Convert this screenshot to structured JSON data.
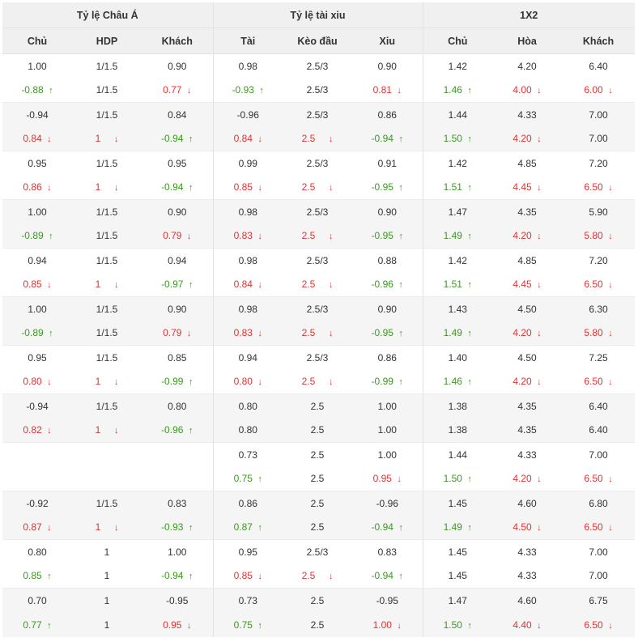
{
  "headers": {
    "groups": [
      "Tỷ lệ Châu Á",
      "Tỷ lệ tài xiu",
      "1X2"
    ],
    "columns": [
      "Chủ",
      "HDP",
      "Khách",
      "Tài",
      "Kèo đầu",
      "Xiu",
      "Chủ",
      "Hòa",
      "Khách"
    ]
  },
  "colors": {
    "up": "#3a9a1e",
    "down": "#e03232",
    "header_bg": "#f0f0f0",
    "row_shaded": "#f5f5f5"
  },
  "blocks": [
    [
      [
        [
          "1.00",
          ""
        ],
        [
          "1/1.5",
          ""
        ],
        [
          "0.90",
          ""
        ],
        [
          "0.98",
          ""
        ],
        [
          "2.5/3",
          ""
        ],
        [
          "0.90",
          ""
        ],
        [
          "1.42",
          ""
        ],
        [
          "4.20",
          ""
        ],
        [
          "6.40",
          ""
        ]
      ],
      [
        [
          "-0.88",
          "up"
        ],
        [
          "1/1.5",
          ""
        ],
        [
          "0.77",
          "down"
        ],
        [
          "-0.93",
          "up"
        ],
        [
          "2.5/3",
          ""
        ],
        [
          "0.81",
          "down"
        ],
        [
          "1.46",
          "up"
        ],
        [
          "4.00",
          "down"
        ],
        [
          "6.00",
          "down"
        ]
      ]
    ],
    [
      [
        [
          "-0.94",
          ""
        ],
        [
          "1/1.5",
          ""
        ],
        [
          "0.84",
          ""
        ],
        [
          "-0.96",
          ""
        ],
        [
          "2.5/3",
          ""
        ],
        [
          "0.86",
          ""
        ],
        [
          "1.44",
          ""
        ],
        [
          "4.33",
          ""
        ],
        [
          "7.00",
          ""
        ]
      ],
      [
        [
          "0.84",
          "down"
        ],
        [
          "1",
          "down"
        ],
        [
          "-0.94",
          "up"
        ],
        [
          "0.84",
          "down"
        ],
        [
          "2.5",
          "down"
        ],
        [
          "-0.94",
          "up"
        ],
        [
          "1.50",
          "up"
        ],
        [
          "4.20",
          "down"
        ],
        [
          "7.00",
          ""
        ]
      ]
    ],
    [
      [
        [
          "0.95",
          ""
        ],
        [
          "1/1.5",
          ""
        ],
        [
          "0.95",
          ""
        ],
        [
          "0.99",
          ""
        ],
        [
          "2.5/3",
          ""
        ],
        [
          "0.91",
          ""
        ],
        [
          "1.42",
          ""
        ],
        [
          "4.85",
          ""
        ],
        [
          "7.20",
          ""
        ]
      ],
      [
        [
          "0.86",
          "down"
        ],
        [
          "1",
          "down"
        ],
        [
          "-0.94",
          "up"
        ],
        [
          "0.85",
          "down"
        ],
        [
          "2.5",
          "down"
        ],
        [
          "-0.95",
          "up"
        ],
        [
          "1.51",
          "up"
        ],
        [
          "4.45",
          "down"
        ],
        [
          "6.50",
          "down"
        ]
      ]
    ],
    [
      [
        [
          "1.00",
          ""
        ],
        [
          "1/1.5",
          ""
        ],
        [
          "0.90",
          ""
        ],
        [
          "0.98",
          ""
        ],
        [
          "2.5/3",
          ""
        ],
        [
          "0.90",
          ""
        ],
        [
          "1.47",
          ""
        ],
        [
          "4.35",
          ""
        ],
        [
          "5.90",
          ""
        ]
      ],
      [
        [
          "-0.89",
          "up"
        ],
        [
          "1/1.5",
          ""
        ],
        [
          "0.79",
          "down"
        ],
        [
          "0.83",
          "down"
        ],
        [
          "2.5",
          "down"
        ],
        [
          "-0.95",
          "up"
        ],
        [
          "1.49",
          "up"
        ],
        [
          "4.20",
          "down"
        ],
        [
          "5.80",
          "down"
        ]
      ]
    ],
    [
      [
        [
          "0.94",
          ""
        ],
        [
          "1/1.5",
          ""
        ],
        [
          "0.94",
          ""
        ],
        [
          "0.98",
          ""
        ],
        [
          "2.5/3",
          ""
        ],
        [
          "0.88",
          ""
        ],
        [
          "1.42",
          ""
        ],
        [
          "4.85",
          ""
        ],
        [
          "7.20",
          ""
        ]
      ],
      [
        [
          "0.85",
          "down"
        ],
        [
          "1",
          "down"
        ],
        [
          "-0.97",
          "up"
        ],
        [
          "0.84",
          "down"
        ],
        [
          "2.5",
          "down"
        ],
        [
          "-0.96",
          "up"
        ],
        [
          "1.51",
          "up"
        ],
        [
          "4.45",
          "down"
        ],
        [
          "6.50",
          "down"
        ]
      ]
    ],
    [
      [
        [
          "1.00",
          ""
        ],
        [
          "1/1.5",
          ""
        ],
        [
          "0.90",
          ""
        ],
        [
          "0.98",
          ""
        ],
        [
          "2.5/3",
          ""
        ],
        [
          "0.90",
          ""
        ],
        [
          "1.43",
          ""
        ],
        [
          "4.50",
          ""
        ],
        [
          "6.30",
          ""
        ]
      ],
      [
        [
          "-0.89",
          "up"
        ],
        [
          "1/1.5",
          ""
        ],
        [
          "0.79",
          "down"
        ],
        [
          "0.83",
          "down"
        ],
        [
          "2.5",
          "down"
        ],
        [
          "-0.95",
          "up"
        ],
        [
          "1.49",
          "up"
        ],
        [
          "4.20",
          "down"
        ],
        [
          "5.80",
          "down"
        ]
      ]
    ],
    [
      [
        [
          "0.95",
          ""
        ],
        [
          "1/1.5",
          ""
        ],
        [
          "0.85",
          ""
        ],
        [
          "0.94",
          ""
        ],
        [
          "2.5/3",
          ""
        ],
        [
          "0.86",
          ""
        ],
        [
          "1.40",
          ""
        ],
        [
          "4.50",
          ""
        ],
        [
          "7.25",
          ""
        ]
      ],
      [
        [
          "0.80",
          "down"
        ],
        [
          "1",
          "down"
        ],
        [
          "-0.99",
          "up"
        ],
        [
          "0.80",
          "down"
        ],
        [
          "2.5",
          "down"
        ],
        [
          "-0.99",
          "up"
        ],
        [
          "1.46",
          "up"
        ],
        [
          "4.20",
          "down"
        ],
        [
          "6.50",
          "down"
        ]
      ]
    ],
    [
      [
        [
          "-0.94",
          ""
        ],
        [
          "1/1.5",
          ""
        ],
        [
          "0.80",
          ""
        ],
        [
          "0.80",
          ""
        ],
        [
          "2.5",
          ""
        ],
        [
          "1.00",
          ""
        ],
        [
          "1.38",
          ""
        ],
        [
          "4.35",
          ""
        ],
        [
          "6.40",
          ""
        ]
      ],
      [
        [
          "0.82",
          "down"
        ],
        [
          "1",
          "down"
        ],
        [
          "-0.96",
          "up"
        ],
        [
          "0.80",
          ""
        ],
        [
          "2.5",
          ""
        ],
        [
          "1.00",
          ""
        ],
        [
          "1.38",
          ""
        ],
        [
          "4.35",
          ""
        ],
        [
          "6.40",
          ""
        ]
      ]
    ],
    [
      [
        [
          "",
          ""
        ],
        [
          "",
          ""
        ],
        [
          "",
          ""
        ],
        [
          "0.73",
          ""
        ],
        [
          "2.5",
          ""
        ],
        [
          "1.00",
          ""
        ],
        [
          "1.44",
          ""
        ],
        [
          "4.33",
          ""
        ],
        [
          "7.00",
          ""
        ]
      ],
      [
        [
          "",
          ""
        ],
        [
          "",
          ""
        ],
        [
          "",
          ""
        ],
        [
          "0.75",
          "up"
        ],
        [
          "2.5",
          ""
        ],
        [
          "0.95",
          "down"
        ],
        [
          "1.50",
          "up"
        ],
        [
          "4.20",
          "down"
        ],
        [
          "6.50",
          "down"
        ]
      ]
    ],
    [
      [
        [
          "-0.92",
          ""
        ],
        [
          "1/1.5",
          ""
        ],
        [
          "0.83",
          ""
        ],
        [
          "0.86",
          ""
        ],
        [
          "2.5",
          ""
        ],
        [
          "-0.96",
          ""
        ],
        [
          "1.45",
          ""
        ],
        [
          "4.60",
          ""
        ],
        [
          "6.80",
          ""
        ]
      ],
      [
        [
          "0.87",
          "down"
        ],
        [
          "1",
          "down"
        ],
        [
          "-0.93",
          "up"
        ],
        [
          "0.87",
          "up"
        ],
        [
          "2.5",
          ""
        ],
        [
          "-0.94",
          "up"
        ],
        [
          "1.49",
          "up"
        ],
        [
          "4.50",
          "down"
        ],
        [
          "6.50",
          "down"
        ]
      ]
    ],
    [
      [
        [
          "0.80",
          ""
        ],
        [
          "1",
          ""
        ],
        [
          "1.00",
          ""
        ],
        [
          "0.95",
          ""
        ],
        [
          "2.5/3",
          ""
        ],
        [
          "0.83",
          ""
        ],
        [
          "1.45",
          ""
        ],
        [
          "4.33",
          ""
        ],
        [
          "7.00",
          ""
        ]
      ],
      [
        [
          "0.85",
          "up"
        ],
        [
          "1",
          ""
        ],
        [
          "-0.94",
          "up"
        ],
        [
          "0.85",
          "down"
        ],
        [
          "2.5",
          "down"
        ],
        [
          "-0.94",
          "up"
        ],
        [
          "1.45",
          ""
        ],
        [
          "4.33",
          ""
        ],
        [
          "7.00",
          ""
        ]
      ]
    ],
    [
      [
        [
          "0.70",
          ""
        ],
        [
          "1",
          ""
        ],
        [
          "-0.95",
          ""
        ],
        [
          "0.73",
          ""
        ],
        [
          "2.5",
          ""
        ],
        [
          "-0.95",
          ""
        ],
        [
          "1.47",
          ""
        ],
        [
          "4.60",
          ""
        ],
        [
          "6.75",
          ""
        ]
      ],
      [
        [
          "0.77",
          "up"
        ],
        [
          "1",
          ""
        ],
        [
          "0.95",
          "down"
        ],
        [
          "0.75",
          "up"
        ],
        [
          "2.5",
          ""
        ],
        [
          "1.00",
          "down"
        ],
        [
          "1.50",
          "up"
        ],
        [
          "4.40",
          "down"
        ],
        [
          "6.50",
          "down"
        ]
      ]
    ]
  ]
}
